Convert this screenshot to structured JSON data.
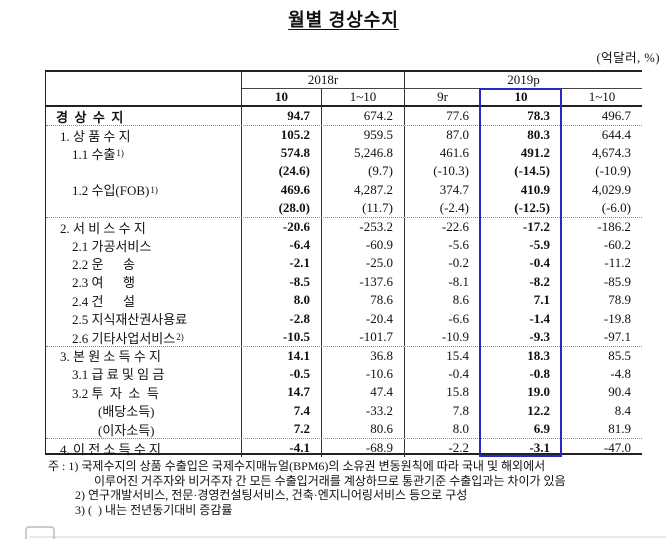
{
  "title": "월별 경상수지",
  "unit_note": "(억달러, %)",
  "colors": {
    "highlight_box": "#2828c8",
    "border": "#222222",
    "dotted_separator": "#888888"
  },
  "header": {
    "year_groups": [
      {
        "label": "2018r",
        "colspan": 2
      },
      {
        "label": "2019p",
        "colspan": 3
      }
    ],
    "columns": [
      "10",
      "1~10",
      "9r",
      "10",
      "1~10"
    ],
    "highlighted_column": "2019p 10"
  },
  "rows": [
    {
      "label": "경  상  수  지",
      "indent": 0,
      "bold_label": true,
      "sep": false,
      "values": [
        "94.7",
        "674.2",
        "77.6",
        "78.3",
        "496.7"
      ]
    },
    {
      "label": "1. 상 품 수 지",
      "indent": 1,
      "bold_label": false,
      "sep": true,
      "values": [
        "105.2",
        "959.5",
        "87.0",
        "80.3",
        "644.4"
      ]
    },
    {
      "label": "1.1 수출",
      "sup": "1)",
      "indent": 2,
      "bold_label": false,
      "sep": false,
      "values": [
        "574.8",
        "5,246.8",
        "461.6",
        "491.2",
        "4,674.3"
      ]
    },
    {
      "label": "",
      "indent": 2,
      "bold_label": false,
      "sep": false,
      "values": [
        "(24.6)",
        "(9.7)",
        "(-10.3)",
        "(-14.5)",
        "(-10.9)"
      ]
    },
    {
      "label": "1.2 수입(FOB)",
      "sup": "1)",
      "indent": 2,
      "bold_label": false,
      "sep": false,
      "values": [
        "469.6",
        "4,287.2",
        "374.7",
        "410.9",
        "4,029.9"
      ]
    },
    {
      "label": "",
      "indent": 2,
      "bold_label": false,
      "sep": false,
      "values": [
        "(28.0)",
        "(11.7)",
        "(-2.4)",
        "(-12.5)",
        "(-6.0)"
      ]
    },
    {
      "label": "2. 서 비 스 수 지",
      "indent": 1,
      "bold_label": false,
      "sep": true,
      "values": [
        "-20.6",
        "-253.2",
        "-22.6",
        "-17.2",
        "-186.2"
      ]
    },
    {
      "label": "2.1 가공서비스",
      "indent": 2,
      "bold_label": false,
      "sep": false,
      "values": [
        "-6.4",
        "-60.9",
        "-5.6",
        "-5.9",
        "-60.2"
      ]
    },
    {
      "label": "2.2 운      송",
      "indent": 2,
      "bold_label": false,
      "sep": false,
      "values": [
        "-2.1",
        "-25.0",
        "-0.2",
        "-0.4",
        "-11.2"
      ]
    },
    {
      "label": "2.3 여      행",
      "indent": 2,
      "bold_label": false,
      "sep": false,
      "values": [
        "-8.5",
        "-137.6",
        "-8.1",
        "-8.2",
        "-85.9"
      ]
    },
    {
      "label": "2.4 건      설",
      "indent": 2,
      "bold_label": false,
      "sep": false,
      "values": [
        "8.0",
        "78.6",
        "8.6",
        "7.1",
        "78.9"
      ]
    },
    {
      "label": "2.5 지식재산권사용료",
      "indent": 2,
      "bold_label": false,
      "sep": false,
      "values": [
        "-2.8",
        "-20.4",
        "-6.6",
        "-1.4",
        "-19.8"
      ]
    },
    {
      "label": "2.6 기타사업서비스",
      "sup": "2)",
      "indent": 2,
      "bold_label": false,
      "sep": false,
      "values": [
        "-10.5",
        "-101.7",
        "-10.9",
        "-9.3",
        "-97.1"
      ]
    },
    {
      "label": "3. 본 원 소 득 수 지",
      "indent": 1,
      "bold_label": false,
      "sep": true,
      "values": [
        "14.1",
        "36.8",
        "15.4",
        "18.3",
        "85.5"
      ]
    },
    {
      "label": "3.1 급 료 및 임 금",
      "indent": 2,
      "bold_label": false,
      "sep": false,
      "values": [
        "-0.5",
        "-10.6",
        "-0.4",
        "-0.8",
        "-4.8"
      ]
    },
    {
      "label": "3.2 투  자  소  득",
      "indent": 2,
      "bold_label": false,
      "sep": false,
      "values": [
        "14.7",
        "47.4",
        "15.8",
        "19.0",
        "90.4"
      ]
    },
    {
      "label": "(배당소득)",
      "indent": 3,
      "bold_label": false,
      "sep": false,
      "values": [
        "7.4",
        "-33.2",
        "7.8",
        "12.2",
        "8.4"
      ]
    },
    {
      "label": "(이자소득)",
      "indent": 3,
      "bold_label": false,
      "sep": false,
      "values": [
        "7.2",
        "80.6",
        "8.0",
        "6.9",
        "81.9"
      ]
    },
    {
      "label": "4. 이 전 소 득 수 지",
      "indent": 1,
      "bold_label": false,
      "sep": true,
      "values": [
        "-4.1",
        "-68.9",
        "-2.2",
        "-3.1",
        "-47.0"
      ]
    }
  ],
  "footnotes": {
    "lines": [
      {
        "indent": 0,
        "text": "주 : 1) 국제수지의 상품 수출입은 국제수지매뉴얼(BPM6)의 소유권 변동원칙에 따라 국내 및 해외에서"
      },
      {
        "indent": 2,
        "text": "이루어진 거주자와 비거주자 간 모든 수출입거래를 계상하므로 통관기준 수출입과는 차이가 있음"
      },
      {
        "indent": 1,
        "text": "2) 연구개발서비스, 전문·경영컨설팅서비스, 건축·엔지니어링서비스 등으로 구성"
      },
      {
        "indent": 1,
        "text": "3) (  ) 내는 전년동기대비 증감률"
      }
    ]
  }
}
